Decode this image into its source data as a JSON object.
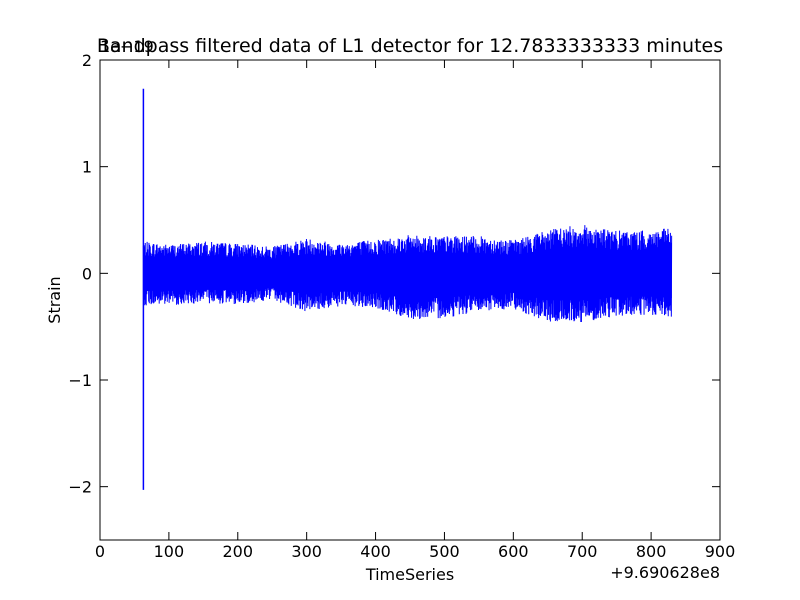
{
  "chart_data": {
    "type": "line",
    "title": "Bandpass filtered data of L1 detector for 12.7833333333 minutes",
    "xlabel": "TimeSeries",
    "ylabel": "Strain",
    "x_offset_label": "+9.690628e8",
    "y_scale_label": "1e−19",
    "xlim": [
      0,
      900
    ],
    "ylim": [
      -2.5,
      2
    ],
    "x_ticks": [
      0,
      100,
      200,
      300,
      400,
      500,
      600,
      700,
      800,
      900
    ],
    "x_tick_labels": [
      "0",
      "100",
      "200",
      "300",
      "400",
      "500",
      "600",
      "700",
      "800",
      "900"
    ],
    "y_ticks": [
      -2,
      -1,
      0,
      1,
      2
    ],
    "y_tick_labels": [
      "−2",
      "−1",
      "0",
      "1",
      "2"
    ],
    "grid": false,
    "series": [
      {
        "color": "#0000ff",
        "spike": {
          "x": 63,
          "ymax": 1.73,
          "ymin": -2.03
        },
        "data_range": [
          63,
          830
        ],
        "envelope": {
          "x": [
            63,
            100,
            150,
            200,
            250,
            300,
            350,
            400,
            450,
            500,
            550,
            600,
            650,
            700,
            750,
            800,
            830
          ],
          "max": [
            0.3,
            0.27,
            0.3,
            0.28,
            0.25,
            0.33,
            0.28,
            0.32,
            0.36,
            0.35,
            0.35,
            0.31,
            0.41,
            0.46,
            0.4,
            0.4,
            0.43
          ],
          "min": [
            -0.3,
            -0.3,
            -0.28,
            -0.29,
            -0.25,
            -0.36,
            -0.31,
            -0.33,
            -0.43,
            -0.42,
            -0.36,
            -0.33,
            -0.46,
            -0.46,
            -0.4,
            -0.4,
            -0.42
          ]
        }
      }
    ]
  }
}
